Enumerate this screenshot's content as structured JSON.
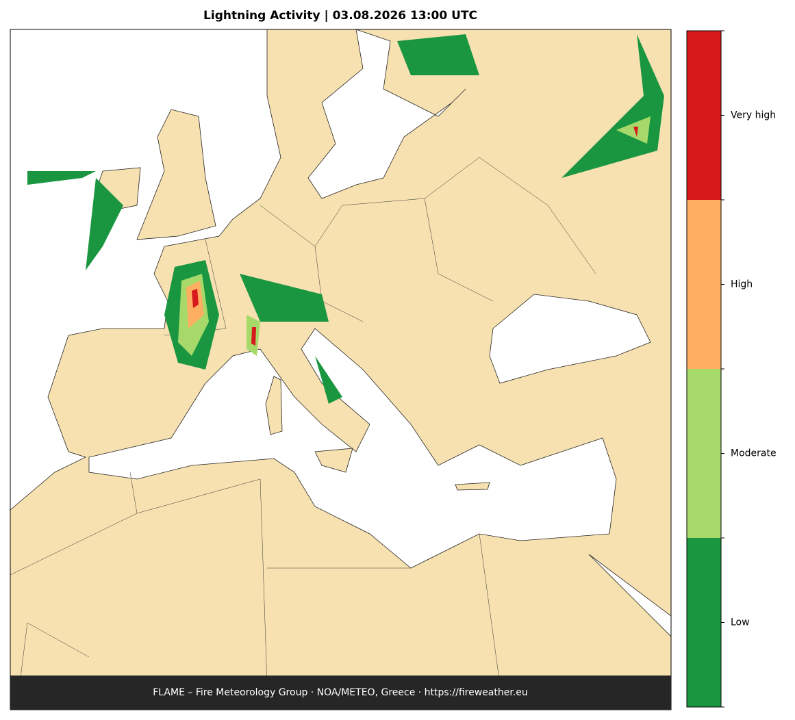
{
  "title": "Lightning Activity  |  03.08.2026 13:00 UTC",
  "colorbar": {
    "levels": [
      {
        "label": "Low",
        "color": "#1a9641"
      },
      {
        "label": "Moderate",
        "color": "#a6d96a"
      },
      {
        "label": "High",
        "color": "#fdae61"
      },
      {
        "label": "Very high",
        "color": "#d7191c"
      }
    ]
  },
  "footer": "FLAME – Fire Meteorology Group · NOA/METEO, Greece · https://fireweather.eu"
}
